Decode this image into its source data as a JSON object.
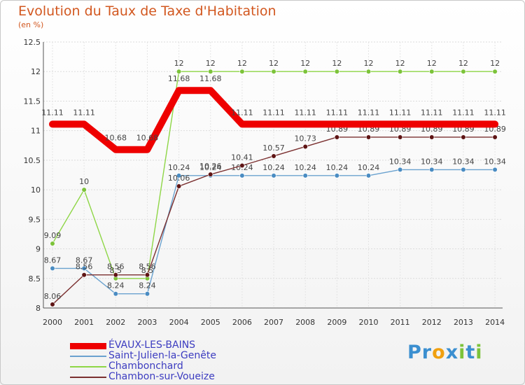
{
  "chart_data": {
    "type": "line",
    "title": "Evolution du Taux de Taxe d'Habitation",
    "subtitle": "(en %)",
    "xlabel": "",
    "ylabel": "",
    "categories": [
      "2000",
      "2001",
      "2002",
      "2003",
      "2004",
      "2005",
      "2006",
      "2007",
      "2008",
      "2009",
      "2010",
      "2011",
      "2012",
      "2013",
      "2014"
    ],
    "ylim": [
      8,
      12.5
    ],
    "yticks": [
      8,
      8.5,
      9,
      9.5,
      10,
      10.5,
      11,
      11.5,
      12,
      12.5
    ],
    "ytick_labels": [
      "8",
      "8.5",
      "9",
      "9.5",
      "10",
      "10.5",
      "11",
      "11.5",
      "12",
      "12.5"
    ],
    "grid": true,
    "legend_position": "bottom-left",
    "series": [
      {
        "name": "Chambonchard",
        "color": "#8ed646",
        "point_color": "#7cc33a",
        "thick": false,
        "values": [
          9.09,
          10,
          8.5,
          8.5,
          12,
          12,
          12,
          12,
          12,
          12,
          12,
          12,
          12,
          12,
          12
        ],
        "labels": [
          "9.09",
          "10",
          "8.5",
          "8.5",
          "12",
          "12",
          "12",
          "12",
          "12",
          "12",
          "12",
          "12",
          "12",
          "12",
          "12"
        ]
      },
      {
        "name": "Saint-Julien-la-Genête",
        "color": "#6aa2cf",
        "point_color": "#4a8cc2",
        "thick": false,
        "values": [
          8.67,
          8.67,
          8.24,
          8.24,
          10.24,
          10.24,
          10.24,
          10.24,
          10.24,
          10.24,
          10.24,
          10.34,
          10.34,
          10.34,
          10.34
        ],
        "labels": [
          "8.67",
          "8.67",
          "8.24",
          "8.24",
          "10.24",
          "10.24",
          "10.24",
          "10.24",
          "10.24",
          "10.24",
          "10.24",
          "10.34",
          "10.34",
          "10.34",
          "10.34"
        ]
      },
      {
        "name": "Chambon-sur-Voueize",
        "color": "#7b3030",
        "point_color": "#5e1414",
        "thick": false,
        "values": [
          8.06,
          8.56,
          8.56,
          8.56,
          10.06,
          10.26,
          10.41,
          10.57,
          10.73,
          10.89,
          10.89,
          10.89,
          10.89,
          10.89,
          10.89
        ],
        "labels": [
          "8.06",
          "8.56",
          "8.56",
          "8.56",
          "10.06",
          "10.26",
          "10.41",
          "10.57",
          "10.73",
          "10.89",
          "10.89",
          "10.89",
          "10.89",
          "10.89",
          "10.89"
        ]
      },
      {
        "name": "ÉVAUX-LES-BAINS",
        "color": "#ee0000",
        "point_color": "#ee0000",
        "thick": true,
        "values": [
          11.11,
          11.11,
          10.68,
          10.68,
          11.68,
          11.68,
          11.11,
          11.11,
          11.11,
          11.11,
          11.11,
          11.11,
          11.11,
          11.11,
          11.11
        ],
        "labels": [
          "11.11",
          "11.11",
          "10.68",
          "10.68",
          "11.68",
          "11.68",
          "11.11",
          "11.11",
          "11.11",
          "11.11",
          "11.11",
          "11.11",
          "11.11",
          "11.11",
          "11.11"
        ]
      }
    ]
  },
  "legend": {
    "items": [
      {
        "label": "ÉVAUX-LES-BAINS",
        "color": "#ee0000"
      },
      {
        "label": "Saint-Julien-la-Genête",
        "color": "#6aa2cf"
      },
      {
        "label": "Chambonchard",
        "color": "#8ed646"
      },
      {
        "label": "Chambon-sur-Voueize",
        "color": "#7b3030"
      }
    ]
  },
  "brand": {
    "letters": [
      "P",
      "r",
      "o",
      "x",
      "i",
      "t",
      "i"
    ],
    "colors": [
      "#3b8fd0",
      "#3b8fd0",
      "#f0a010",
      "#3b8fd0",
      "#7cc33a",
      "#3b8fd0",
      "#7cc33a"
    ]
  }
}
